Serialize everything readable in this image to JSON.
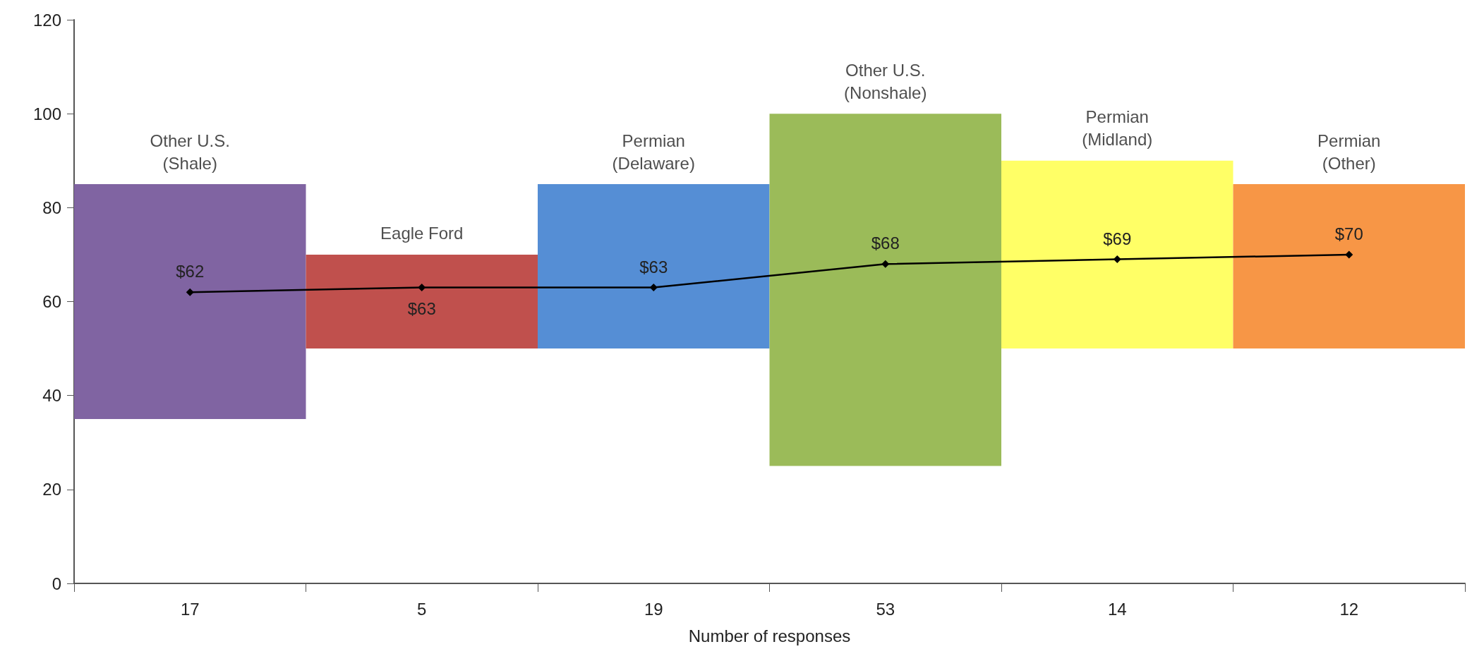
{
  "chart_data": {
    "type": "bar",
    "xlabel": "Number of responses",
    "categories": [
      "17",
      "5",
      "19",
      "53",
      "14",
      "12"
    ],
    "ylim": [
      0,
      120
    ],
    "yticks": [
      0,
      20,
      40,
      60,
      80,
      100,
      120
    ],
    "grid": false,
    "series": [
      {
        "base": [
          35,
          50,
          50,
          25,
          50,
          50
        ],
        "values": [
          50,
          20,
          35,
          75,
          40,
          35
        ],
        "colors": [
          "#8064a2",
          "#c0504d",
          "#558ed5",
          "#9bbb59",
          "#ffff66",
          "#f79646"
        ]
      },
      {
        "type": "line",
        "color": "#000000",
        "marker": "diamond",
        "values": [
          62,
          63,
          63,
          68,
          69,
          70
        ],
        "value_labels": [
          "$62",
          "$63",
          "$63",
          "$68",
          "$69",
          "$70"
        ]
      }
    ],
    "annotations": [
      {
        "text": "Other U.S.\n(Shale)",
        "x": "17",
        "y": 85
      },
      {
        "text": "Eagle Ford",
        "x": "5",
        "y": 70
      },
      {
        "text": "Permian\n(Delaware)",
        "x": "19",
        "y": 85
      },
      {
        "text": "Other U.S.\n(Nonshale)",
        "x": "53",
        "y": 100
      },
      {
        "text": "Permian\n(Midland)",
        "x": "14",
        "y": 90
      },
      {
        "text": "Permian\n(Other)",
        "x": "12",
        "y": 85
      }
    ]
  }
}
